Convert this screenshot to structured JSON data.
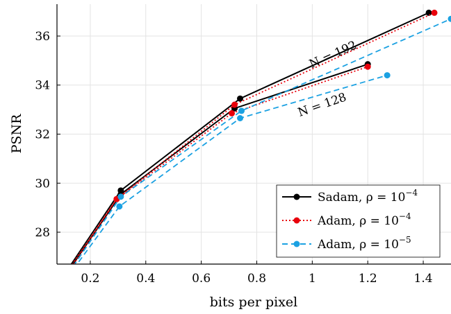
{
  "chart_data": {
    "type": "line",
    "xlabel": "bits per pixel",
    "ylabel": "PSNR",
    "xlim": [
      0.08,
      1.5
    ],
    "ylim": [
      26.7,
      37.3
    ],
    "xticks": [
      {
        "value": 0.2,
        "label": "0.2"
      },
      {
        "value": 0.4,
        "label": "0.4"
      },
      {
        "value": 0.6,
        "label": "0.6"
      },
      {
        "value": 0.8,
        "label": "0.8"
      },
      {
        "value": 1.0,
        "label": "1"
      },
      {
        "value": 1.2,
        "label": "1.2"
      },
      {
        "value": 1.4,
        "label": "1.4"
      }
    ],
    "yticks": [
      {
        "value": 28,
        "label": "28"
      },
      {
        "value": 30,
        "label": "30"
      },
      {
        "value": 32,
        "label": "32"
      },
      {
        "value": 34,
        "label": "34"
      },
      {
        "value": 36,
        "label": "36"
      }
    ],
    "grid": true,
    "legend_position": "bottom-right",
    "series": [
      {
        "name": "Sadam, ρ = 10",
        "name_exp": "−4",
        "color": "#000000",
        "dash": "solid",
        "curves": [
          [
            [
              0.12,
              26.5
            ],
            [
              0.31,
              29.7
            ],
            [
              0.74,
              33.45
            ],
            [
              1.42,
              36.95
            ]
          ],
          [
            [
              0.12,
              26.4
            ],
            [
              0.31,
              29.55
            ],
            [
              0.72,
              33.05
            ],
            [
              1.2,
              34.85
            ]
          ]
        ]
      },
      {
        "name": "Adam, ρ = 10",
        "name_exp": "−4",
        "color": "#e8000b",
        "dash": "dotted",
        "curves": [
          [
            [
              0.12,
              26.45
            ],
            [
              0.295,
              29.35
            ],
            [
              0.72,
              33.2
            ],
            [
              1.44,
              36.95
            ]
          ],
          [
            [
              0.12,
              26.35
            ],
            [
              0.295,
              29.35
            ],
            [
              0.71,
              32.85
            ],
            [
              1.2,
              34.75
            ]
          ]
        ]
      },
      {
        "name": "Adam, ρ = 10",
        "name_exp": "−5",
        "color": "#1ba1e2",
        "dash": "dashed",
        "curves": [
          [
            [
              0.12,
              26.3
            ],
            [
              0.31,
              29.45
            ],
            [
              0.745,
              32.95
            ],
            [
              1.5,
              36.7
            ]
          ],
          [
            [
              0.12,
              26.2
            ],
            [
              0.305,
              29.05
            ],
            [
              0.74,
              32.65
            ],
            [
              1.27,
              34.4
            ]
          ]
        ]
      }
    ],
    "annotations": [
      {
        "text": "N = 192",
        "x": 1.08,
        "y": 35.1,
        "angle": -24
      },
      {
        "text": "N = 128",
        "x": 1.04,
        "y": 33.05,
        "angle": -19
      }
    ]
  }
}
